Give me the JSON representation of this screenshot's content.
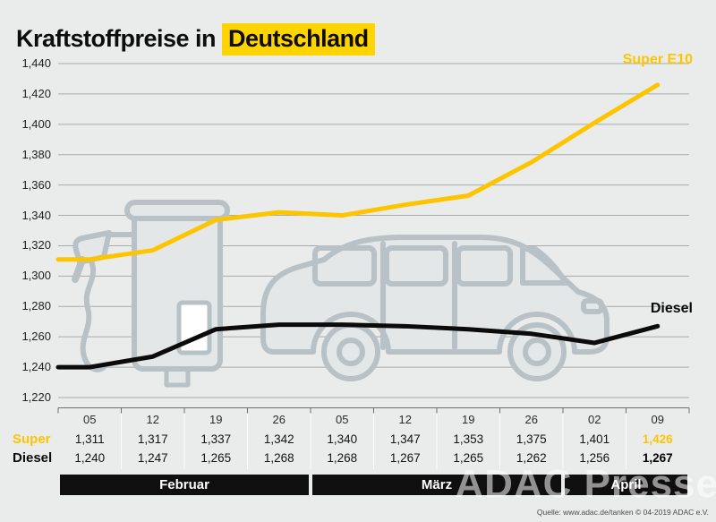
{
  "title": {
    "text": "Kraftstoffpreise in",
    "highlight": "Deutschland"
  },
  "colors": {
    "accent_yellow": "#fdc500",
    "highlight_yellow": "#ffd400",
    "background": "#eaebeb",
    "grid": "#a8abac",
    "black": "#111111",
    "illustration": "#b7c1c6"
  },
  "chart_data": {
    "type": "line",
    "title": "Kraftstoffpreise in Deutschland",
    "x_tick_labels": [
      "05",
      "12",
      "19",
      "26",
      "05",
      "12",
      "19",
      "26",
      "02",
      "09"
    ],
    "month_groups": [
      {
        "label": "Februar",
        "span": 4
      },
      {
        "label": "März",
        "span": 4
      },
      {
        "label": "April",
        "span": 2
      }
    ],
    "ylim": [
      1220,
      1440
    ],
    "y_tick_step": 20,
    "y_tick_labels": [
      "1,440",
      "1,420",
      "1,400",
      "1,380",
      "1,360",
      "1,340",
      "1,320",
      "1,300",
      "1,280",
      "1,260",
      "1,240",
      "1,220"
    ],
    "grid": true,
    "legend_position": "line-end-annotations",
    "series": [
      {
        "name": "Super",
        "annotation": "Super E10",
        "color": "#fdc500",
        "values": [
          1311,
          1317,
          1337,
          1342,
          1340,
          1347,
          1353,
          1375,
          1401,
          1426
        ],
        "value_labels": [
          "1,311",
          "1,317",
          "1,337",
          "1,342",
          "1,340",
          "1,347",
          "1,353",
          "1,375",
          "1,401",
          "1,426"
        ]
      },
      {
        "name": "Diesel",
        "annotation": "Diesel",
        "color": "#0b0b0b",
        "values": [
          1240,
          1247,
          1265,
          1268,
          1268,
          1267,
          1265,
          1262,
          1256,
          1267
        ],
        "value_labels": [
          "1,240",
          "1,247",
          "1,265",
          "1,268",
          "1,268",
          "1,267",
          "1,265",
          "1,262",
          "1,256",
          "1,267"
        ]
      }
    ]
  },
  "table": {
    "row_headers": [
      "Super",
      "Diesel"
    ]
  },
  "watermark": "ADAC Presse",
  "source": "Quelle: www.adac.de/tanken  © 04-2019  ADAC e.V."
}
